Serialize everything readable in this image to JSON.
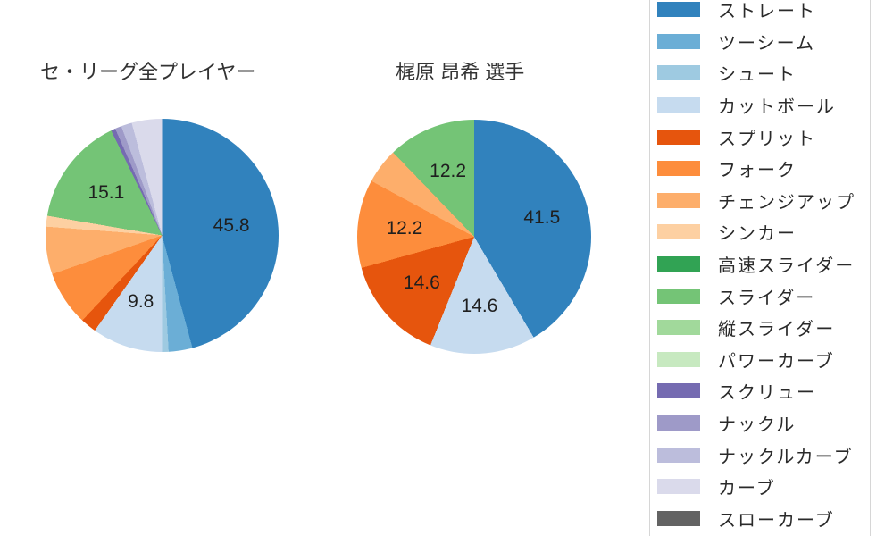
{
  "titles": {
    "left": "セ・リーグ全プレイヤー",
    "right": "梶原 昂希 選手"
  },
  "chart_data": [
    {
      "type": "pie",
      "title": "セ・リーグ全プレイヤー",
      "unit": "percent",
      "legend_position": "right",
      "slices": [
        {
          "name": "ストレート",
          "value": 45.8,
          "label": "45.8",
          "color": "#3182bd"
        },
        {
          "name": "ツーシーム",
          "value": 3.3,
          "label": null,
          "color": "#6baed6"
        },
        {
          "name": "シュート",
          "value": 0.9,
          "label": null,
          "color": "#9ecae1"
        },
        {
          "name": "カットボール",
          "value": 9.8,
          "label": "9.8",
          "color": "#c6dbef"
        },
        {
          "name": "スプリット",
          "value": 2.2,
          "label": null,
          "color": "#e6550d"
        },
        {
          "name": "フォーク",
          "value": 7.6,
          "label": null,
          "color": "#fd8d3c"
        },
        {
          "name": "チェンジアップ",
          "value": 6.6,
          "label": null,
          "color": "#fdae6b"
        },
        {
          "name": "シンカー",
          "value": 1.5,
          "label": null,
          "color": "#fdd0a2"
        },
        {
          "name": "スライダー",
          "value": 15.1,
          "label": "15.1",
          "color": "#74c476"
        },
        {
          "name": "スクリュー",
          "value": 0.6,
          "label": null,
          "color": "#756bb1"
        },
        {
          "name": "ナックル",
          "value": 0.9,
          "label": null,
          "color": "#9e9ac8"
        },
        {
          "name": "ナックルカーブ",
          "value": 1.5,
          "label": null,
          "color": "#bcbddc"
        },
        {
          "name": "カーブ",
          "value": 4.2,
          "label": null,
          "color": "#dadaeb"
        }
      ]
    },
    {
      "type": "pie",
      "title": "梶原 昂希 選手",
      "unit": "percent",
      "legend_position": "right",
      "slices": [
        {
          "name": "ストレート",
          "value": 41.5,
          "label": "41.5",
          "color": "#3182bd"
        },
        {
          "name": "カットボール",
          "value": 14.6,
          "label": "14.6",
          "color": "#c6dbef"
        },
        {
          "name": "スプリット",
          "value": 14.6,
          "label": "14.6",
          "color": "#e6550d"
        },
        {
          "name": "フォーク",
          "value": 12.2,
          "label": "12.2",
          "color": "#fd8d3c"
        },
        {
          "name": "チェンジアップ",
          "value": 4.9,
          "label": null,
          "color": "#fdae6b"
        },
        {
          "name": "スライダー",
          "value": 12.2,
          "label": "12.2",
          "color": "#74c476"
        }
      ]
    }
  ],
  "legend": {
    "items": [
      {
        "label": "ストレート",
        "color": "#3182bd"
      },
      {
        "label": "ツーシーム",
        "color": "#6baed6"
      },
      {
        "label": "シュート",
        "color": "#9ecae1"
      },
      {
        "label": "カットボール",
        "color": "#c6dbef"
      },
      {
        "label": "スプリット",
        "color": "#e6550d"
      },
      {
        "label": "フォーク",
        "color": "#fd8d3c"
      },
      {
        "label": "チェンジアップ",
        "color": "#fdae6b"
      },
      {
        "label": "シンカー",
        "color": "#fdd0a2"
      },
      {
        "label": "高速スライダー",
        "color": "#31a354"
      },
      {
        "label": "スライダー",
        "color": "#74c476"
      },
      {
        "label": "縦スライダー",
        "color": "#a1d99b"
      },
      {
        "label": "パワーカーブ",
        "color": "#c7e9c0"
      },
      {
        "label": "スクリュー",
        "color": "#756bb1"
      },
      {
        "label": "ナックル",
        "color": "#9e9ac8"
      },
      {
        "label": "ナックルカーブ",
        "color": "#bcbddc"
      },
      {
        "label": "カーブ",
        "color": "#dadaeb"
      },
      {
        "label": "スローカーブ",
        "color": "#636363"
      }
    ]
  }
}
